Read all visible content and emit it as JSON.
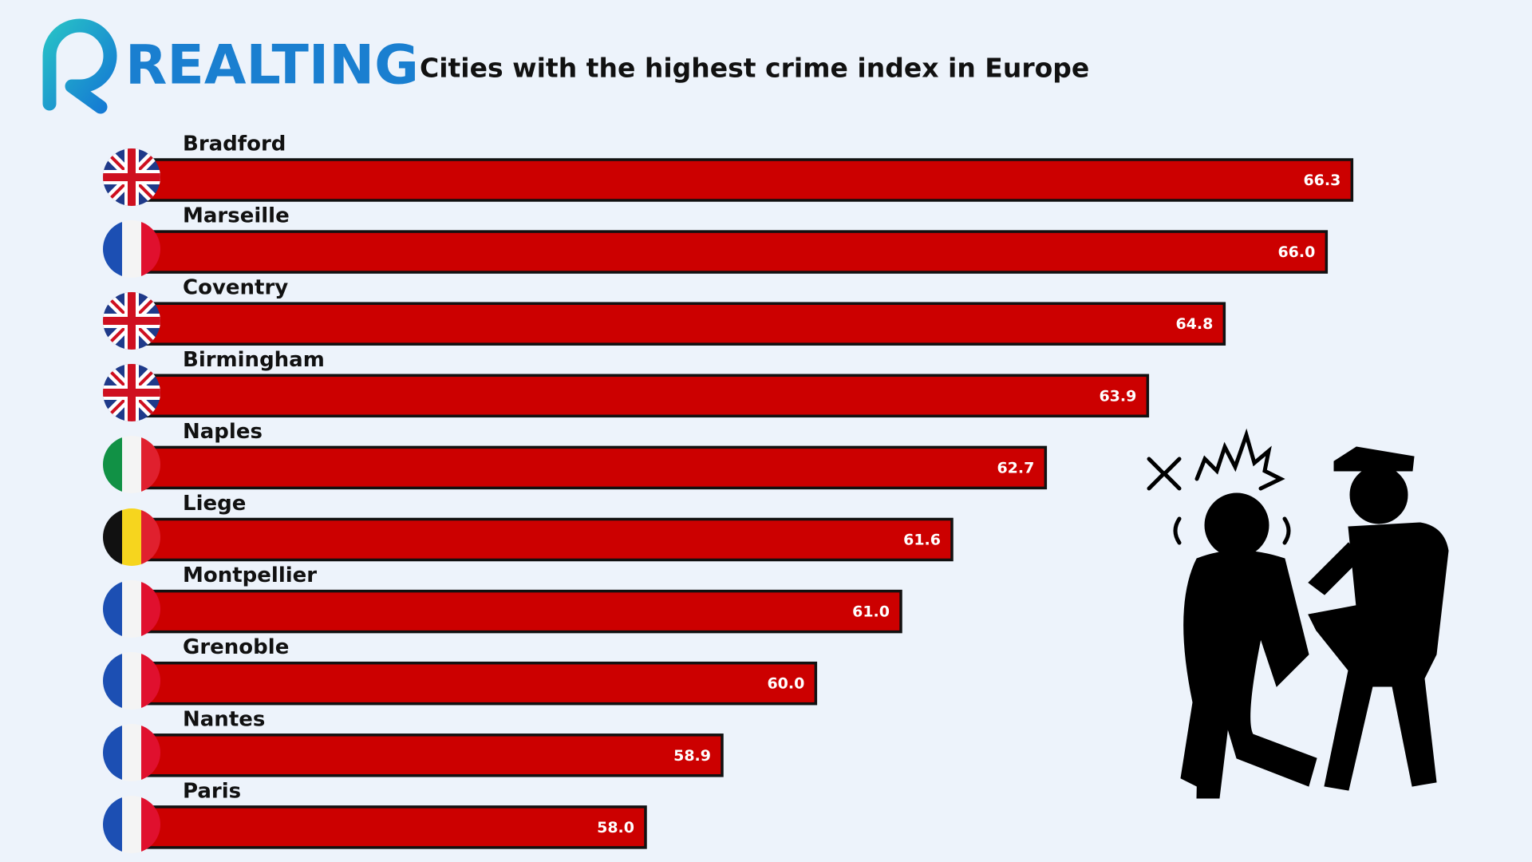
{
  "chart_data": {
    "type": "bar",
    "orientation": "horizontal",
    "brand": "REALTING",
    "title": "Cities with the highest crime index in Europe",
    "categories": [
      "Bradford",
      "Marseille",
      "Coventry",
      "Birmingham",
      "Naples",
      "Liege",
      "Montpellier",
      "Grenoble",
      "Nantes",
      "Paris"
    ],
    "values": [
      66.3,
      66.0,
      64.8,
      63.9,
      62.7,
      61.6,
      61.0,
      60.0,
      58.9,
      58.0
    ],
    "value_labels": [
      "66.3",
      "66.0",
      "64.8",
      "63.9",
      "62.7",
      "61.6",
      "61.0",
      "60.0",
      "58.9",
      "58.0"
    ],
    "color": "#cc0000",
    "xlim": [
      52,
      67
    ]
  }
}
